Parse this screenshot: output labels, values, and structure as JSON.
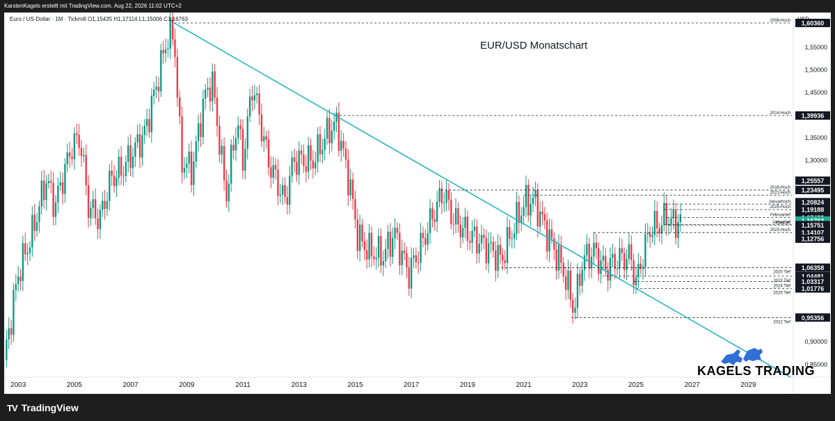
{
  "header": {
    "credit": "KarstenKagels erstellt mit TradingView.com, Aug 22, 2026 11:02 UTC+2",
    "symbol_line": "Euro / US-Dollar · 1M · Tickmill  O1,15435  H1,17114  L1,15006  C1,16763"
  },
  "footer": {
    "brand": "TradingView",
    "brand_mark": "TV"
  },
  "watermark": {
    "brand": "KAGELS TRADING"
  },
  "colors": {
    "up": "#089981",
    "down": "#f23645",
    "trendline": "#26b5c1",
    "last_price": "#22ab94",
    "label_bg": "#131722"
  },
  "chart_data": {
    "type": "candlestick",
    "title": "EUR/USD Monatschart",
    "currency_label": "USD",
    "y_axis": {
      "ylim": [
        0.822,
        1.6266
      ],
      "ticks": [
        "1,55000",
        "1,50000",
        "1,45000",
        "1,35000",
        "1,30000",
        "0,90000",
        "0,85000"
      ]
    },
    "x_axis": {
      "xlim": [
        2002.5,
        2030.6
      ],
      "ticks": [
        "2003",
        "2005",
        "2007",
        "2009",
        "2011",
        "2013",
        "2015",
        "2017",
        "2019",
        "2021",
        "2023",
        "2025",
        "2027",
        "2029"
      ]
    },
    "levels": [
      {
        "label": "2008-Hoch",
        "price": 1.6036,
        "box": "1,60360",
        "from": 2008.55
      },
      {
        "label": "2014-Hoch",
        "price": 1.39936,
        "box": "1,39936",
        "from": 2014.3
      },
      {
        "label": "",
        "price": 1.25557,
        "box": "1,25557",
        "from": null
      },
      {
        "label": "2018-Hoch",
        "price": 1.23495,
        "box": "1,23495",
        "from": 2018.05
      },
      {
        "label": "2021-Hoch",
        "price": 1.22349,
        "box": "",
        "from": 2021.0
      },
      {
        "label": "",
        "price": 1.20824,
        "box": "1,20824",
        "from": null
      },
      {
        "label": "Januarhoch",
        "price": 1.20393,
        "box": "",
        "from": 2026.0
      },
      {
        "label": "",
        "price": 1.19188,
        "box": "1,19188",
        "from": null
      },
      {
        "label": "2025-Hoch",
        "price": 1.1919,
        "box": "",
        "from": 2026.0
      },
      {
        "label": "",
        "price": 1.17422,
        "box": "1,17422",
        "from": null
      },
      {
        "label": "Februartief",
        "price": 1.1742,
        "box": "",
        "from": 2026.1
      },
      {
        "label": "Januartief",
        "price": 1.1586,
        "box": "",
        "from": 2026.0
      },
      {
        "label": "",
        "price": 1.16763,
        "box": "1,16763",
        "from": null
      },
      {
        "label": "Märztief",
        "price": 1.15751,
        "box": "1,15751",
        "from": 2026.2
      },
      {
        "label": "2023-Hoch",
        "price": 1.14107,
        "box": "1,14107",
        "from": 2023.5
      },
      {
        "label": "",
        "price": 1.12756,
        "box": "1,12756",
        "from": null
      },
      {
        "label": "2020 Tief",
        "price": 1.06358,
        "box": "1,06358",
        "from": 2020.2
      },
      {
        "label": "2023 Tief",
        "price": 1.04481,
        "box": "1,04481",
        "from": 2023.8
      },
      {
        "label": "2024 Tief",
        "price": 1.03317,
        "box": "1,03317",
        "from": 2024.9
      },
      {
        "label": "2025 Tief",
        "price": 1.01776,
        "box": "1,01776",
        "from": 2025.0
      },
      {
        "label": "2022 Tief",
        "price": 0.95356,
        "box": "0,95356",
        "from": 2022.7
      }
    ],
    "last_price": {
      "value": 1.16763,
      "box": "1,16763"
    },
    "trendline": {
      "from": [
        2008.55,
        1.6036
      ],
      "to": [
        2030.5,
        0.822
      ]
    },
    "anchors": [
      [
        2002.5,
        0.86
      ],
      [
        2003.0,
        1.05
      ],
      [
        2003.5,
        1.14
      ],
      [
        2004.0,
        1.26
      ],
      [
        2004.3,
        1.2
      ],
      [
        2004.9,
        1.33
      ],
      [
        2005.2,
        1.35
      ],
      [
        2005.5,
        1.2
      ],
      [
        2005.9,
        1.17
      ],
      [
        2006.3,
        1.26
      ],
      [
        2006.7,
        1.28
      ],
      [
        2007.0,
        1.31
      ],
      [
        2007.5,
        1.36
      ],
      [
        2007.9,
        1.46
      ],
      [
        2008.3,
        1.57
      ],
      [
        2008.55,
        1.58
      ],
      [
        2008.8,
        1.3
      ],
      [
        2009.2,
        1.28
      ],
      [
        2009.6,
        1.43
      ],
      [
        2009.9,
        1.48
      ],
      [
        2010.4,
        1.22
      ],
      [
        2010.8,
        1.39
      ],
      [
        2011.0,
        1.3
      ],
      [
        2011.35,
        1.47
      ],
      [
        2011.9,
        1.3
      ],
      [
        2012.5,
        1.21
      ],
      [
        2012.8,
        1.3
      ],
      [
        2013.5,
        1.3
      ],
      [
        2014.1,
        1.37
      ],
      [
        2014.35,
        1.38
      ],
      [
        2014.8,
        1.25
      ],
      [
        2015.1,
        1.13
      ],
      [
        2015.5,
        1.1
      ],
      [
        2016.0,
        1.09
      ],
      [
        2016.4,
        1.14
      ],
      [
        2016.9,
        1.05
      ],
      [
        2017.4,
        1.12
      ],
      [
        2017.9,
        1.2
      ],
      [
        2018.15,
        1.23
      ],
      [
        2018.5,
        1.17
      ],
      [
        2019.0,
        1.14
      ],
      [
        2019.9,
        1.1
      ],
      [
        2020.2,
        1.08
      ],
      [
        2020.5,
        1.13
      ],
      [
        2020.9,
        1.19
      ],
      [
        2021.1,
        1.21
      ],
      [
        2021.4,
        1.21
      ],
      [
        2021.9,
        1.13
      ],
      [
        2022.4,
        1.06
      ],
      [
        2022.8,
        0.97
      ],
      [
        2023.1,
        1.08
      ],
      [
        2023.5,
        1.1
      ],
      [
        2023.9,
        1.06
      ],
      [
        2024.3,
        1.08
      ],
      [
        2024.8,
        1.09
      ],
      [
        2025.0,
        1.03
      ],
      [
        2025.2,
        1.08
      ],
      [
        2025.5,
        1.15
      ],
      [
        2025.9,
        1.16
      ],
      [
        2026.1,
        1.18
      ],
      [
        2026.3,
        1.16
      ],
      [
        2026.55,
        1.167
      ]
    ]
  }
}
